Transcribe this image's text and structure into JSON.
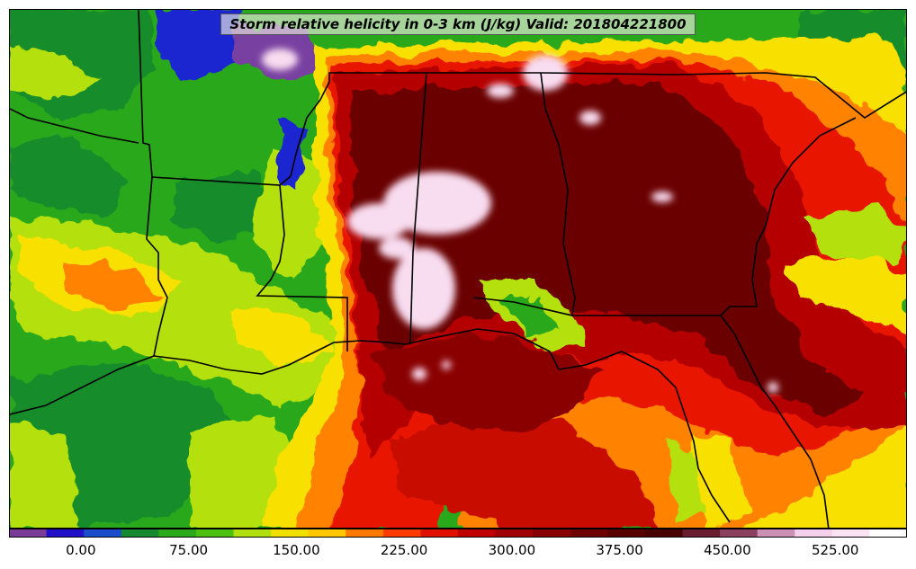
{
  "title": "Storm relative helicity in 0-3 km (J/kg) Valid: 201804221800",
  "colorbar": {
    "ticks": [
      "0.00",
      "75.00",
      "150.00",
      "225.00",
      "300.00",
      "375.00",
      "450.00",
      "525.00"
    ],
    "tick_values": [
      0,
      75,
      150,
      225,
      300,
      375,
      450,
      525
    ],
    "range": [
      -50,
      575
    ],
    "colors": [
      "#7a3c96",
      "#2010c8",
      "#1a4ccc",
      "#158a30",
      "#2aaa1a",
      "#4cc010",
      "#b0e010",
      "#f0e000",
      "#ffc800",
      "#ff7800",
      "#ff3c00",
      "#e01000",
      "#c00000",
      "#a00000",
      "#880000",
      "#700000",
      "#580000",
      "#480000",
      "#6a1c30",
      "#8c4060",
      "#cc90b4",
      "#f4d0ec",
      "#fae4f4",
      "#ffffff"
    ]
  },
  "palette": {
    "water_green": "#2aa81c",
    "deep_green": "#148c2c",
    "lime": "#b4e00e",
    "yellow": "#f8e000",
    "orange": "#ff8200",
    "red": "#e81800",
    "dark_red": "#9a0000",
    "maroon": "#6a0000",
    "pink": "#f8dcf0",
    "blue": "#1c28d0",
    "purple": "#7840a0"
  }
}
